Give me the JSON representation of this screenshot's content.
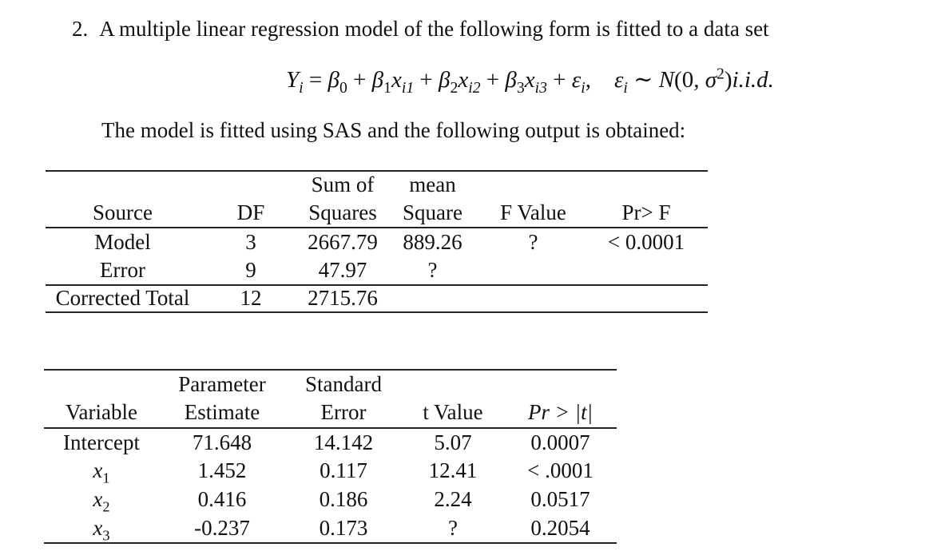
{
  "colors": {
    "background": "#ffffff",
    "text": "#111111",
    "rule": "#232323"
  },
  "problem": {
    "number": "2.",
    "intro": "A multiple linear regression model of the following form is fitted to a data set",
    "sas_note": "The model is fitted using SAS and the following output is obtained:"
  },
  "formula": {
    "tokens": [
      {
        "t": "Y",
        "it": true
      },
      {
        "t": "i",
        "sub": true,
        "it": true
      },
      {
        "t": " = "
      },
      {
        "t": "β",
        "it": true
      },
      {
        "t": "0",
        "sub": true
      },
      {
        "t": " + "
      },
      {
        "t": "β",
        "it": true
      },
      {
        "t": "1",
        "sub": true
      },
      {
        "t": "x",
        "it": true
      },
      {
        "t": "i1",
        "sub": true,
        "it": true
      },
      {
        "t": " + "
      },
      {
        "t": "β",
        "it": true
      },
      {
        "t": "2",
        "sub": true
      },
      {
        "t": "x",
        "it": true
      },
      {
        "t": "i2",
        "sub": true,
        "it": true
      },
      {
        "t": " + "
      },
      {
        "t": "β",
        "it": true
      },
      {
        "t": "3",
        "sub": true
      },
      {
        "t": "x",
        "it": true
      },
      {
        "t": "i3",
        "sub": true,
        "it": true
      },
      {
        "t": " + "
      },
      {
        "t": "ε",
        "it": true
      },
      {
        "t": "i",
        "sub": true,
        "it": true
      },
      {
        "t": ",  "
      },
      {
        "t": "ε",
        "it": true
      },
      {
        "t": "i",
        "sub": true,
        "it": true
      },
      {
        "t": " ∼ "
      },
      {
        "t": "N",
        "it": true
      },
      {
        "t": "(0, "
      },
      {
        "t": "σ",
        "it": true
      },
      {
        "t": "2",
        "sup": true
      },
      {
        "t": ")"
      },
      {
        "t": "i.i.d.",
        "it": true
      }
    ]
  },
  "anova_table": {
    "header_row1": {
      "sum_of": "Sum of",
      "mean": "mean"
    },
    "header_row2": {
      "source": "Source",
      "df": "DF",
      "squares": "Squares",
      "square": "Square",
      "f_value": "F Value",
      "pr_f": "Pr> F"
    },
    "rows": [
      {
        "source": "Model",
        "df": "3",
        "sum_sq": "2667.79",
        "mean_sq": "889.26",
        "f_value": "?",
        "pr_f": "< 0.0001"
      },
      {
        "source": "Error",
        "df": "9",
        "sum_sq": "47.97",
        "mean_sq": "?",
        "f_value": "",
        "pr_f": ""
      },
      {
        "source": "Corrected Total",
        "df": "12",
        "sum_sq": "2715.76",
        "mean_sq": "",
        "f_value": "",
        "pr_f": ""
      }
    ]
  },
  "param_table": {
    "header_row1": {
      "parameter": "Parameter",
      "standard": "Standard"
    },
    "header_row2": {
      "variable": "Variable",
      "estimate": "Estimate",
      "error": "Error",
      "t_value": "t Value",
      "pr_t": "Pr > |t|"
    },
    "rows": [
      {
        "variable": "Intercept",
        "estimate": "71.648",
        "std_error": "14.142",
        "t_value": "5.07",
        "pr_t": "0.0007"
      },
      {
        "var_base": "x",
        "var_sub": "1",
        "estimate": "1.452",
        "std_error": "0.117",
        "t_value": "12.41",
        "pr_t": "< .0001"
      },
      {
        "var_base": "x",
        "var_sub": "2",
        "estimate": "0.416",
        "std_error": "0.186",
        "t_value": "2.24",
        "pr_t": "0.0517"
      },
      {
        "var_base": "x",
        "var_sub": "3",
        "estimate": "-0.237",
        "std_error": "0.173",
        "t_value": "?",
        "pr_t": "0.2054"
      }
    ]
  }
}
